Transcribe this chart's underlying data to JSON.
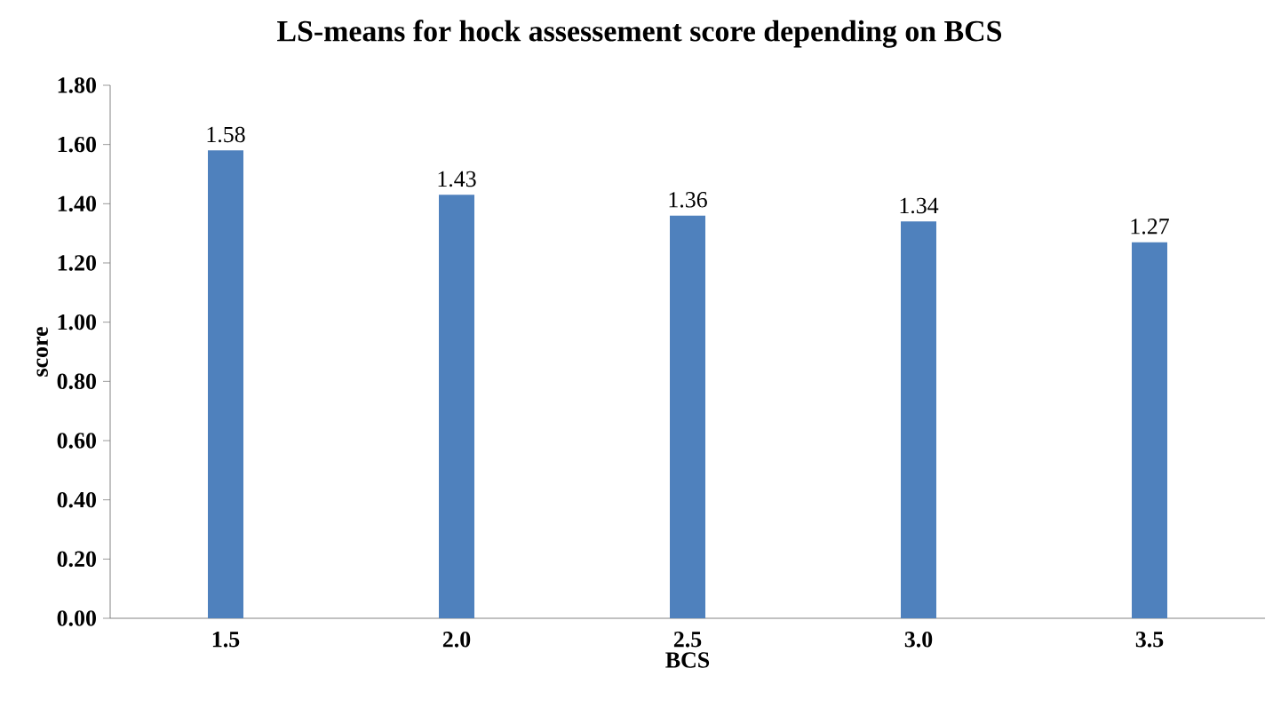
{
  "chart_data": {
    "type": "bar",
    "title": "LS-means for hock assessement score depending on BCS",
    "xlabel": "BCS",
    "ylabel": "score",
    "categories": [
      "1.5",
      "2.0",
      "2.5",
      "3.0",
      "3.5"
    ],
    "values": [
      1.58,
      1.43,
      1.36,
      1.34,
      1.27
    ],
    "color": "#4f81bd",
    "ylim": [
      0,
      1.8
    ],
    "yticks": [
      {
        "value": 0,
        "label": "0.00"
      },
      {
        "value": 0.2,
        "label": "0.20"
      },
      {
        "value": 0.4,
        "label": "0.40"
      },
      {
        "value": 0.6,
        "label": "0.60"
      },
      {
        "value": 0.8,
        "label": "0.80"
      },
      {
        "value": 1.0,
        "label": "1.00"
      },
      {
        "value": 1.2,
        "label": "1.20"
      },
      {
        "value": 1.4,
        "label": "1.40"
      },
      {
        "value": 1.6,
        "label": "1.60"
      },
      {
        "value": 1.8,
        "label": "1.80"
      }
    ],
    "data_labels": true,
    "grid": false
  }
}
